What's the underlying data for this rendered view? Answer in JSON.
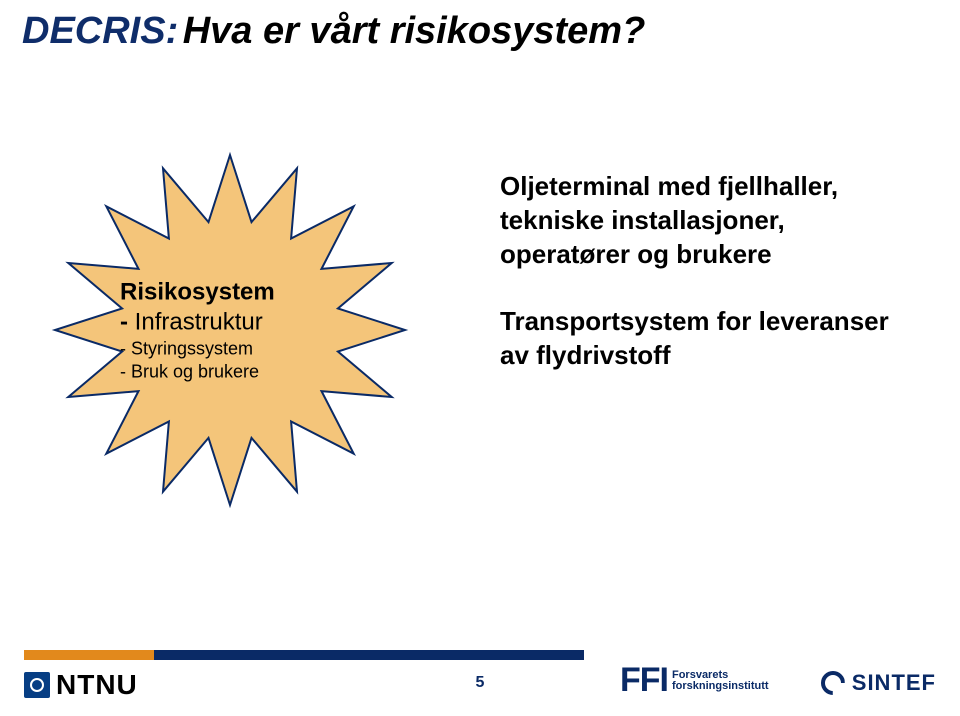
{
  "title": {
    "prefix": "DECRIS:",
    "rest": "Hva er vårt risikosystem?",
    "prefix_color": "#0f2d6a",
    "rest_color": "#000000"
  },
  "starburst": {
    "fill": "#f4c57a",
    "stroke": "#0a2a66",
    "stroke_width": 2,
    "title": "Risikosystem",
    "lines": [
      "- Infrastruktur",
      "- Styringssystem",
      "- Bruk og brukere"
    ],
    "num_points": 16,
    "outer_r": 175,
    "inner_r": 110
  },
  "right": {
    "p1": "Oljeterminal med fjellhaller, tekniske installasjoner, operatører og brukere",
    "p2": "Transportsystem for leveranser av flydrivstoff"
  },
  "footer": {
    "page": "5",
    "ntnu": "NTNU",
    "ntnu_color": "#000000",
    "ffi": "FFI",
    "ffi_sub1": "Forsvarets",
    "ffi_sub2": "forskningsinstitutt",
    "sintef": "SINTEF",
    "bar_orange": "#e2891c",
    "bar_blue": "#0a2a66"
  }
}
